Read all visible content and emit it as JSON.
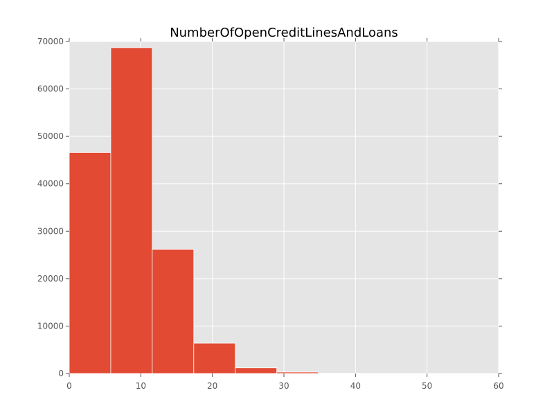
{
  "chart_data": {
    "type": "bar",
    "title": "NumberOfOpenCreditLinesAndLoans",
    "xlabel": "",
    "ylabel": "",
    "xlim": [
      0,
      60
    ],
    "ylim": [
      0,
      70000
    ],
    "x_ticks": [
      0,
      10,
      20,
      30,
      40,
      50,
      60
    ],
    "y_ticks": [
      0,
      10000,
      20000,
      30000,
      40000,
      50000,
      60000,
      70000
    ],
    "grid": true,
    "colors": {
      "bar": "#E24A33",
      "background": "#E5E5E5",
      "grid": "#ffffff",
      "bar_edge": "#ffffff"
    },
    "bins": [
      {
        "x0": 0.0,
        "x1": 5.8,
        "count": 46600
      },
      {
        "x0": 5.8,
        "x1": 11.6,
        "count": 68700
      },
      {
        "x0": 11.6,
        "x1": 17.4,
        "count": 26200
      },
      {
        "x0": 17.4,
        "x1": 23.2,
        "count": 6400
      },
      {
        "x0": 23.2,
        "x1": 29.0,
        "count": 1200
      },
      {
        "x0": 29.0,
        "x1": 34.8,
        "count": 300
      },
      {
        "x0": 34.8,
        "x1": 40.6,
        "count": 60
      },
      {
        "x0": 40.6,
        "x1": 46.4,
        "count": 15
      },
      {
        "x0": 46.4,
        "x1": 52.2,
        "count": 5
      },
      {
        "x0": 52.2,
        "x1": 58.0,
        "count": 2
      }
    ]
  }
}
